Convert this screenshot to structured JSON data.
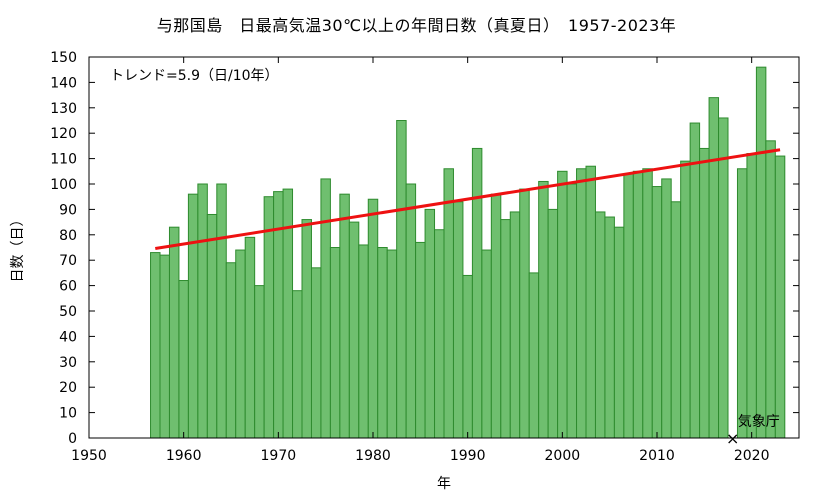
{
  "chart_data": {
    "type": "bar",
    "title": "与那国島　日最高気温30℃以上の年間日数（真夏日）　1957-2023年",
    "xlabel": "年",
    "ylabel": "日数（日）",
    "xlim": [
      1950,
      2025
    ],
    "ylim": [
      0,
      150
    ],
    "xticks": [
      1950,
      1960,
      1970,
      1980,
      1990,
      2000,
      2010,
      2020
    ],
    "yticks": [
      0,
      10,
      20,
      30,
      40,
      50,
      60,
      70,
      80,
      90,
      100,
      110,
      120,
      130,
      140,
      150
    ],
    "x": [
      1957,
      1958,
      1959,
      1960,
      1961,
      1962,
      1963,
      1964,
      1965,
      1966,
      1967,
      1968,
      1969,
      1970,
      1971,
      1972,
      1973,
      1974,
      1975,
      1976,
      1977,
      1978,
      1979,
      1980,
      1981,
      1982,
      1983,
      1984,
      1985,
      1986,
      1987,
      1988,
      1989,
      1990,
      1991,
      1992,
      1993,
      1994,
      1995,
      1996,
      1997,
      1998,
      1999,
      2000,
      2001,
      2002,
      2003,
      2004,
      2005,
      2006,
      2007,
      2008,
      2009,
      2010,
      2011,
      2012,
      2013,
      2014,
      2015,
      2016,
      2017,
      2018,
      2019,
      2020,
      2021,
      2022,
      2023
    ],
    "values": [
      73,
      72,
      83,
      62,
      96,
      100,
      88,
      100,
      69,
      74,
      79,
      60,
      95,
      97,
      98,
      58,
      86,
      67,
      102,
      75,
      96,
      85,
      76,
      94,
      75,
      74,
      125,
      100,
      77,
      90,
      82,
      106,
      93,
      64,
      114,
      74,
      96,
      86,
      89,
      98,
      65,
      101,
      90,
      105,
      100,
      106,
      107,
      89,
      87,
      83,
      104,
      105,
      106,
      99,
      102,
      93,
      109,
      124,
      114,
      134,
      126,
      null,
      106,
      112,
      146,
      117,
      111
    ],
    "bar_color": "#6fbf6f",
    "bar_edge_color": "#2e8b2e",
    "trend": {
      "x": [
        1957,
        2023
      ],
      "y": [
        74.6,
        113.5
      ],
      "color": "#ee1111"
    },
    "annotation_trend": "トレンド=5.9（日/10年）",
    "missing_marker": {
      "x": 2018,
      "y": 0,
      "symbol": "×"
    },
    "source_label": "気象庁",
    "grid": false
  }
}
